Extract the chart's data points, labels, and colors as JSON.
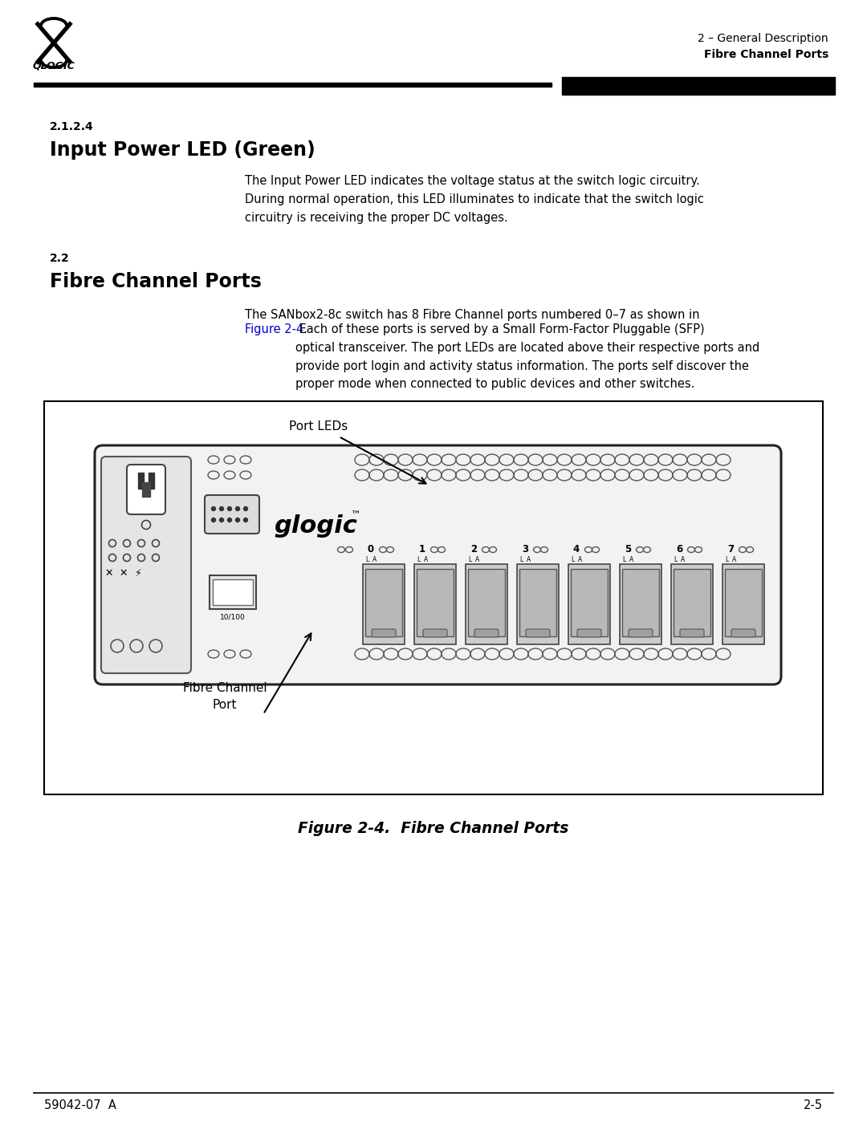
{
  "page_bg": "#ffffff",
  "logo_text": "QLOGIC",
  "header_right_line1": "2 – General Description",
  "header_right_line2": "Fibre Channel Ports",
  "section_211_label": "2.1.2.4",
  "section_211_title": "Input Power LED (Green)",
  "section_211_body": "The Input Power LED indicates the voltage status at the switch logic circuitry.\nDuring normal operation, this LED illuminates to indicate that the switch logic\ncircuitry is receiving the proper DC voltages.",
  "section_22_label": "2.2",
  "section_22_title": "Fibre Channel Ports",
  "section_22_body_line1": "The SANbox2-8c switch has 8 Fibre Channel ports numbered 0–7 as shown in",
  "section_22_link": "Figure 2-4.",
  "section_22_body_rest": " Each of these ports is served by a Small Form-Factor Pluggable (SFP)\noptical transceiver. The port LEDs are located above their respective ports and\nprovide port login and activity status information. The ports self discover the\nproper mode when connected to public devices and other switches.",
  "figure_caption": "Figure 2-4.  Fibre Channel Ports",
  "figure_label_port_leds": "Port LEDs",
  "figure_label_fibre_channel_port": "Fibre Channel\nPort",
  "footer_left": "59042-07  A",
  "footer_right": "2-5",
  "link_color": "#0000cc",
  "text_color": "#000000",
  "port_labels": [
    "0",
    "1",
    "2",
    "3",
    "4",
    "5",
    "6",
    "7"
  ]
}
